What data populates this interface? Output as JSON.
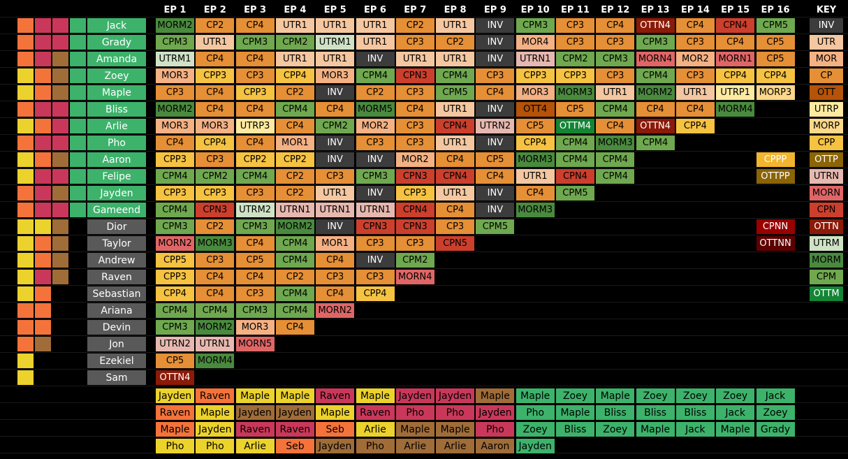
{
  "episodes": [
    "EP 1",
    "EP 2",
    "EP 3",
    "EP 4",
    "EP 5",
    "EP 6",
    "EP 7",
    "EP 8",
    "EP 9",
    "EP 10",
    "EP 11",
    "EP 12",
    "EP 13",
    "EP 14",
    "EP 15",
    "EP 16"
  ],
  "key_title": "KEY",
  "colors": {
    "MORM": "#4a8a3e",
    "CP": "#e58f36",
    "CPP": "#f5c242",
    "UTR": "#f4c7a0",
    "UTRM": "#cfe2c6",
    "UTRP": "#fdeaa0",
    "INV": "#3c3c3c",
    "CPM": "#6fa84f",
    "OTTN": "#8b1a08",
    "CPN": "#cc3f2d",
    "MOR": "#f4b183",
    "MORN": "#e06666",
    "OTT": "#b45309",
    "OTTM": "#138535",
    "OTTP": "#8a6406",
    "CPPP": "#f1b52f",
    "MORP": "#fdd88a",
    "UTRN": "#e6b8af",
    "CPNN": "#990000",
    "OTTNN": "#5d0000",
    "white_text": [
      "INV",
      "OTTN",
      "OTTM",
      "OTTP",
      "CPPP",
      "CPNN",
      "OTTNN"
    ]
  },
  "bar_colors": {
    "O": "#f4733a",
    "R": "#c9385a",
    "B": "#a06c38",
    "Y": "#ecd22c",
    "G": "#3db26b"
  },
  "contestants": [
    {
      "name": "Jack",
      "bars": "ORRG",
      "cells": [
        "MORM2",
        "CP2",
        "CP4",
        "UTR1",
        "UTR1",
        "UTR1",
        "CP2",
        "UTR1",
        "INV",
        "CPM3",
        "CP3",
        "CP4",
        "OTTN4",
        "CP4",
        "CPN4",
        "CPM5"
      ]
    },
    {
      "name": "Grady",
      "bars": "ORRG",
      "cells": [
        "CPM3",
        "UTR1",
        "CPM3",
        "CPM2",
        "UTRM1",
        "UTR1",
        "CP3",
        "CP2",
        "INV",
        "MOR4",
        "CP3",
        "CP3",
        "CPM3",
        "CP3",
        "CP4",
        "CP5"
      ]
    },
    {
      "name": "Amanda",
      "bars": "ORBG",
      "cells": [
        "UTRM1",
        "CP4",
        "CP4",
        "UTR1",
        "UTR1",
        "INV",
        "UTR1",
        "UTR1",
        "INV",
        "UTRN1",
        "CPM2",
        "CPM3",
        "MORN4",
        "MOR2",
        "MORN1",
        "CP5"
      ]
    },
    {
      "name": "Zoey",
      "bars": "YOBG",
      "cells": [
        "MOR3",
        "CPP3",
        "CP3",
        "CPP4",
        "MOR3",
        "CPM4",
        "CPN3",
        "CPM4",
        "CP3",
        "CPP3",
        "CPP3",
        "CP3",
        "CPM4",
        "CP3",
        "CPP4",
        "CPP4"
      ]
    },
    {
      "name": "Maple",
      "bars": "YOBG",
      "cells": [
        "CP3",
        "CP4",
        "CPP3",
        "CP2",
        "INV",
        "CP2",
        "CP3",
        "CPM5",
        "CP4",
        "MOR3",
        "MORM3",
        "UTR1",
        "MORM2",
        "UTR1",
        "UTRP1",
        "MORP3"
      ]
    },
    {
      "name": "Bliss",
      "bars": "ORRG",
      "cells": [
        "MORM2",
        "CP4",
        "CP4",
        "CPM4",
        "CP4",
        "MORM5",
        "CP4",
        "UTR1",
        "INV",
        "OTT4",
        "CP5",
        "CPM4",
        "CP4",
        "CP4",
        "MORM4"
      ]
    },
    {
      "name": "Arlie",
      "bars": "YORG",
      "cells": [
        "MOR3",
        "MOR3",
        "UTRP3",
        "CP4",
        "CPM2",
        "MOR2",
        "CP3",
        "CPN4",
        "UTRN2",
        "CP5",
        "OTTM4",
        "CP4",
        "OTTN4",
        "CPP4"
      ]
    },
    {
      "name": "Pho",
      "bars": "ORRG",
      "cells": [
        "CP4",
        "CPP4",
        "CP4",
        "MOR1",
        "INV",
        "CP3",
        "CP3",
        "UTR1",
        "INV",
        "CPP4",
        "CPM4",
        "MORM3",
        "CPM4"
      ]
    },
    {
      "name": "Aaron",
      "bars": "YOBG",
      "cells": [
        "CPP3",
        "CP3",
        "CPP2",
        "CPP2",
        "INV",
        "INV",
        "MOR2",
        "CP4",
        "CP5",
        "MORM3",
        "CPM4",
        "CPM4"
      ]
    },
    {
      "name": "Felipe",
      "bars": "YRRG",
      "cells": [
        "CPM4",
        "CPM2",
        "CPM4",
        "CP2",
        "CP3",
        "CPM3",
        "CPN3",
        "CPN4",
        "CP4",
        "UTR1",
        "CPN4",
        "CPM4"
      ]
    },
    {
      "name": "Jayden",
      "bars": "ORBG",
      "cells": [
        "CPP3",
        "CPP3",
        "CP3",
        "CP2",
        "UTR1",
        "INV",
        "CPP3",
        "UTR1",
        "INV",
        "CP4",
        "CPM5"
      ]
    },
    {
      "name": "Gameend",
      "bars": "ORRG",
      "cells": [
        "CPM4",
        "CPN3",
        "UTRM2",
        "UTRN1",
        "UTRN1",
        "UTRN1",
        "CPN4",
        "CP4",
        "INV",
        "MORM3"
      ]
    },
    {
      "name": "Dior",
      "bars": "YYB",
      "cells": [
        "CPM3",
        "CP2",
        "CPM3",
        "MORM2",
        "INV",
        "CPN3",
        "CPN3",
        "CP3",
        "CPM5"
      ]
    },
    {
      "name": "Taylor",
      "bars": "YOB",
      "cells": [
        "MORN2",
        "MORM3",
        "CP4",
        "CPM4",
        "MOR1",
        "CP3",
        "CP3",
        "CPN5"
      ]
    },
    {
      "name": "Andrew",
      "bars": "YOB",
      "cells": [
        "CPP5",
        "CP3",
        "CP5",
        "CPM4",
        "CP4",
        "INV",
        "CPM2"
      ]
    },
    {
      "name": "Raven",
      "bars": "YRB",
      "cells": [
        "CPP3",
        "CP4",
        "CP4",
        "CP2",
        "CP3",
        "CP3",
        "MORN4"
      ]
    },
    {
      "name": "Sebastian",
      "bars": "YO",
      "cells": [
        "CPP4",
        "CP4",
        "CP3",
        "CPM4",
        "CP4",
        "CPP4"
      ]
    },
    {
      "name": "Ariana",
      "bars": "OO",
      "cells": [
        "CPM4",
        "CPM4",
        "CPM3",
        "CPM4",
        "MORN2"
      ]
    },
    {
      "name": "Devin",
      "bars": "OO",
      "cells": [
        "CPM3",
        "MORM2",
        "MOR3",
        "CP4"
      ]
    },
    {
      "name": "Jon",
      "bars": "OB",
      "cells": [
        "UTRN2",
        "UTRN1",
        "MORN5"
      ]
    },
    {
      "name": "Ezekiel",
      "bars": "Y",
      "cells": [
        "CP5",
        "MORM4"
      ]
    },
    {
      "name": "Sam",
      "bars": "Y",
      "cells": [
        "OTTN4"
      ]
    }
  ],
  "extra_key": [
    {
      "label": "CPPP",
      "code": "CPPP",
      "row": 8
    },
    {
      "label": "OTTPP",
      "code": "OTTP",
      "row": 9
    },
    {
      "label": "CPNN",
      "code": "CPNN",
      "row": 12
    },
    {
      "label": "OTTNN",
      "code": "OTTNN",
      "row": 13
    }
  ],
  "key": [
    "INV",
    "UTR",
    "MOR",
    "CP",
    "OTT",
    "UTRP",
    "MORP",
    "CPP",
    "OTTP",
    "UTRN",
    "MORN",
    "CPN",
    "OTTN",
    "UTRM",
    "MORM",
    "CPM",
    "OTTM"
  ],
  "bottom_rows": [
    [
      "Jayden",
      "Raven",
      "Maple",
      "Maple",
      "Raven",
      "Maple",
      "Jayden",
      "Jayden",
      "Maple",
      "Maple",
      "Zoey",
      "Maple",
      "Zoey",
      "Zoey",
      "Zoey",
      "Jack"
    ],
    [
      "Raven",
      "Maple",
      "Jayden",
      "Jayden",
      "Maple",
      "Raven",
      "Pho",
      "Pho",
      "Jayden",
      "Pho",
      "Maple",
      "Bliss",
      "Bliss",
      "Bliss",
      "Jack",
      "Zoey"
    ],
    [
      "Maple",
      "Jayden",
      "Raven",
      "Raven",
      "Seb",
      "Arlie",
      "Maple",
      "Maple",
      "Pho",
      "Zoey",
      "Bliss",
      "Zoey",
      "Maple",
      "Jack",
      "Maple",
      "Grady"
    ],
    [
      "Pho",
      "Pho",
      "Arlie",
      "Seb",
      "Jayden",
      "Pho",
      "Arlie",
      "Arlie",
      "Aaron",
      "Jayden"
    ]
  ],
  "person_colors": {
    "Jayden": "#ecd22c",
    "Raven": "#f4733a",
    "Maple": "#ecd22c",
    "Pho": "#ecd22c",
    "Seb": "#f4733a",
    "Arlie": "#a06c38",
    "Aaron": "#a06c38",
    "Zoey": "#3db26b",
    "Jack": "#3db26b",
    "Bliss": "#3db26b",
    "Grady": "#3db26b"
  },
  "bottom_colors": [
    [
      "Y",
      "O",
      "Y",
      "Y",
      "R",
      "Y",
      "R",
      "R",
      "B",
      "G",
      "G",
      "G",
      "G",
      "G",
      "G",
      "G"
    ],
    [
      "O",
      "Y",
      "B",
      "B",
      "Y",
      "R",
      "R",
      "R",
      "R",
      "G",
      "G",
      "G",
      "G",
      "G",
      "G",
      "G"
    ],
    [
      "O",
      "Y",
      "R",
      "R",
      "O",
      "Y",
      "B",
      "B",
      "R",
      "G",
      "G",
      "G",
      "G",
      "G",
      "G",
      "G"
    ],
    [
      "Y",
      "Y",
      "Y",
      "O",
      "B",
      "B",
      "B",
      "B",
      "B",
      "G"
    ]
  ]
}
